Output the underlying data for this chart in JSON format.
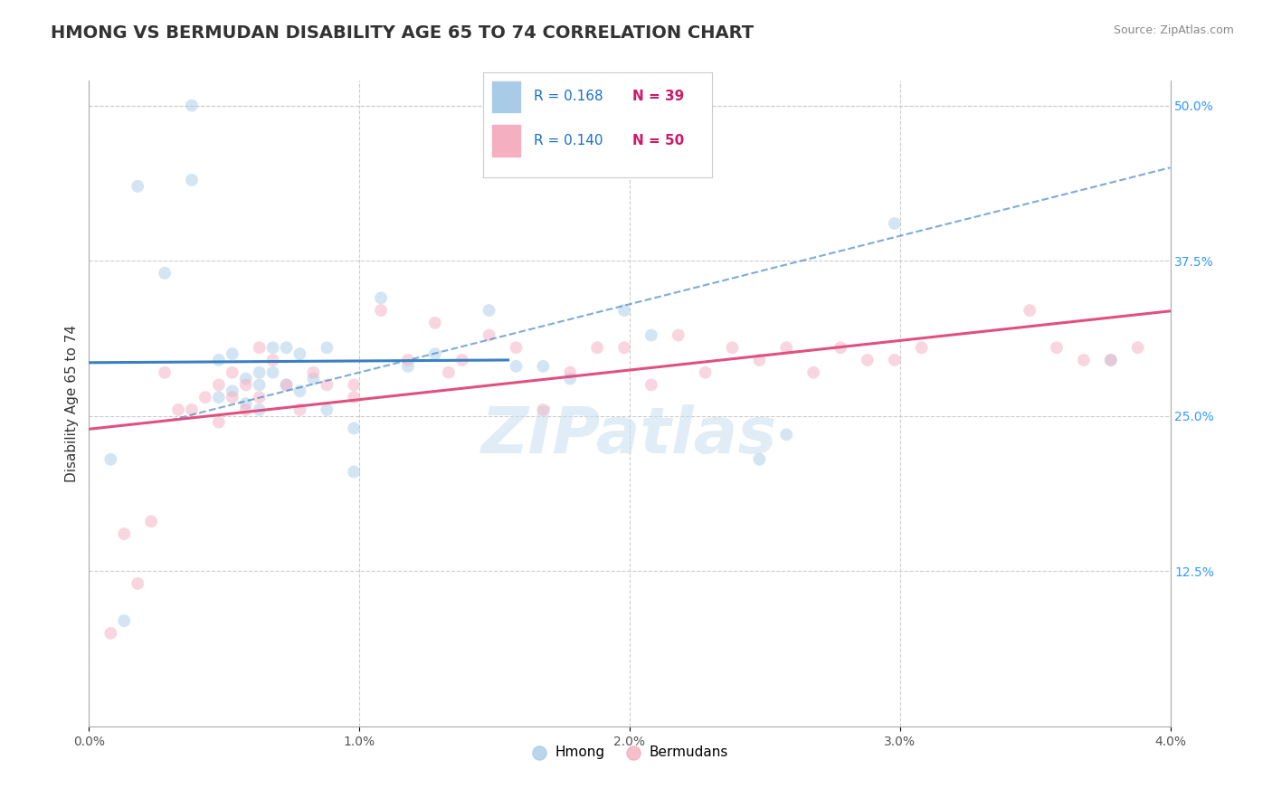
{
  "title": "HMONG VS BERMUDAN DISABILITY AGE 65 TO 74 CORRELATION CHART",
  "source_text": "Source: ZipAtlas.com",
  "ylabel": "Disability Age 65 to 74",
  "xlim": [
    0.0,
    4.0
  ],
  "ylim": [
    0.0,
    52.0
  ],
  "x_ticks": [
    0.0,
    1.0,
    2.0,
    3.0,
    4.0
  ],
  "x_tick_labels": [
    "0.0%",
    "1.0%",
    "2.0%",
    "3.0%",
    "4.0%"
  ],
  "y_ticks_right": [
    12.5,
    25.0,
    37.5,
    50.0
  ],
  "y_tick_labels_right": [
    "12.5%",
    "25.0%",
    "37.5%",
    "50.0%"
  ],
  "hmong_color": "#a8cce8",
  "bermudan_color": "#f4afc0",
  "hmong_line_color": "#3a7fc1",
  "bermudan_line_color": "#e05080",
  "hmong_R": 0.168,
  "hmong_N": 39,
  "bermudan_R": 0.14,
  "bermudan_N": 50,
  "legend_R_color": "#1a6fcc",
  "legend_N_color": "#cc1a66",
  "hmong_scatter_x": [
    0.08,
    0.18,
    0.28,
    0.38,
    0.38,
    0.48,
    0.48,
    0.53,
    0.53,
    0.58,
    0.58,
    0.63,
    0.63,
    0.63,
    0.68,
    0.68,
    0.73,
    0.73,
    0.78,
    0.78,
    0.83,
    0.88,
    0.88,
    0.98,
    0.98,
    1.08,
    1.18,
    1.28,
    1.48,
    1.58,
    1.68,
    1.78,
    1.98,
    2.08,
    2.48,
    2.58,
    2.98,
    3.78,
    0.13
  ],
  "hmong_scatter_y": [
    21.5,
    43.5,
    36.5,
    44.0,
    50.0,
    29.5,
    26.5,
    30.0,
    27.0,
    26.0,
    28.0,
    28.5,
    27.5,
    25.5,
    30.5,
    28.5,
    30.5,
    27.5,
    30.0,
    27.0,
    28.0,
    30.5,
    25.5,
    24.0,
    20.5,
    34.5,
    29.0,
    30.0,
    33.5,
    29.0,
    29.0,
    28.0,
    33.5,
    31.5,
    21.5,
    23.5,
    40.5,
    29.5,
    8.5
  ],
  "bermudan_scatter_x": [
    0.08,
    0.18,
    0.28,
    0.33,
    0.38,
    0.43,
    0.48,
    0.48,
    0.53,
    0.53,
    0.58,
    0.58,
    0.63,
    0.63,
    0.68,
    0.73,
    0.78,
    0.83,
    0.88,
    0.98,
    0.98,
    1.08,
    1.18,
    1.28,
    1.33,
    1.38,
    1.48,
    1.58,
    1.68,
    1.78,
    1.88,
    1.98,
    2.08,
    2.18,
    2.28,
    2.38,
    2.48,
    2.58,
    2.68,
    2.78,
    2.88,
    2.98,
    3.08,
    3.48,
    3.58,
    3.68,
    3.78,
    3.88,
    0.13,
    0.23
  ],
  "bermudan_scatter_y": [
    7.5,
    11.5,
    28.5,
    25.5,
    25.5,
    26.5,
    24.5,
    27.5,
    26.5,
    28.5,
    25.5,
    27.5,
    26.5,
    30.5,
    29.5,
    27.5,
    25.5,
    28.5,
    27.5,
    26.5,
    27.5,
    33.5,
    29.5,
    32.5,
    28.5,
    29.5,
    31.5,
    30.5,
    25.5,
    28.5,
    30.5,
    30.5,
    27.5,
    31.5,
    28.5,
    30.5,
    29.5,
    30.5,
    28.5,
    30.5,
    29.5,
    29.5,
    30.5,
    33.5,
    30.5,
    29.5,
    29.5,
    30.5,
    15.5,
    16.5
  ],
  "watermark_text": "ZIPatlas",
  "background_color": "#ffffff",
  "grid_color": "#cccccc",
  "title_fontsize": 14,
  "axis_label_fontsize": 11,
  "tick_fontsize": 10,
  "scatter_size": 100,
  "scatter_alpha": 0.5,
  "trend_linewidth": 2.2,
  "hmong_line_xmax": 1.55,
  "dashed_line_xmin": 0.3,
  "dashed_line_xmax": 4.0,
  "dashed_slope": 5.5,
  "dashed_intercept": 23.0
}
